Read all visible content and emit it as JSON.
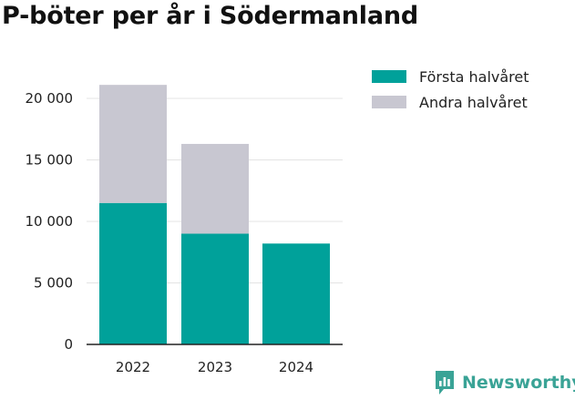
{
  "chart_data": {
    "type": "bar",
    "stacked": true,
    "title": "P-böter per år i Södermanland",
    "categories": [
      "2022",
      "2023",
      "2024"
    ],
    "series": [
      {
        "name": "Första halvåret",
        "color": "#00a19a",
        "values": [
          11500,
          9000,
          8200
        ]
      },
      {
        "name": "Andra halvåret",
        "color": "#c8c7d1",
        "values": [
          9600,
          7300,
          0
        ]
      }
    ],
    "y_ticks": [
      0,
      5000,
      10000,
      15000,
      20000
    ],
    "y_tick_labels": [
      "0",
      "5 000",
      "10 000",
      "15 000",
      "20 000"
    ],
    "ylim": [
      0,
      20000
    ],
    "grid": true,
    "legend_position": "right"
  },
  "brand": {
    "name": "Newsworthy",
    "color": "#3aa396",
    "icon": "newsworthy-logo-icon"
  }
}
